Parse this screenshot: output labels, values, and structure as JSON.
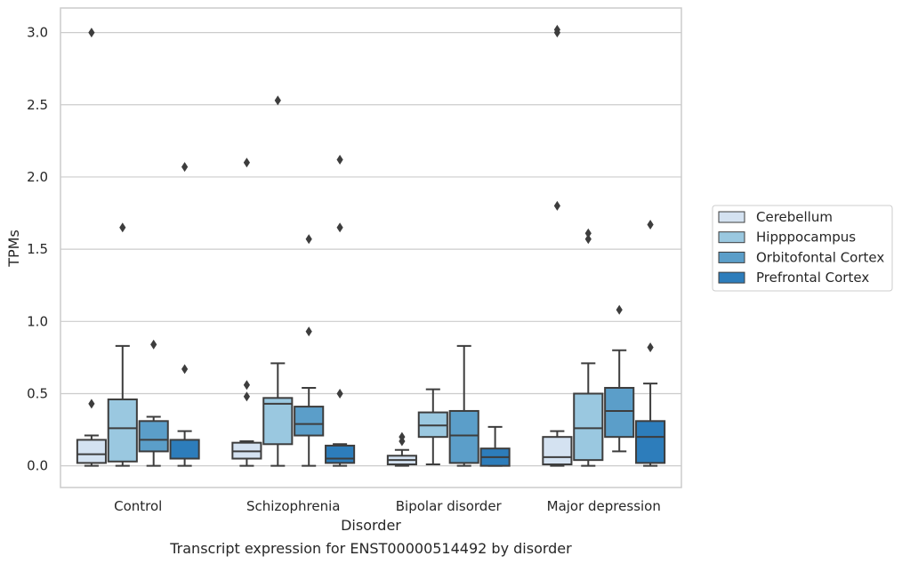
{
  "chart_data": {
    "type": "box",
    "title": "",
    "caption": "Transcript expression for ENST00000514492 by disorder",
    "xlabel": "Disorder",
    "ylabel": "TPMs",
    "ylim": [
      -0.15,
      3.17
    ],
    "yticks": [
      0.0,
      0.5,
      1.0,
      1.5,
      2.0,
      2.5,
      3.0
    ],
    "ytick_labels": [
      "0.0",
      "0.5",
      "1.0",
      "1.5",
      "2.0",
      "2.5",
      "3.0"
    ],
    "grid": "horizontal",
    "legend_position": "center-right outside",
    "categories": [
      "Control",
      "Schizophrenia",
      "Bipolar disorder",
      "Major depression"
    ],
    "series": [
      {
        "name": "Cerebellum",
        "color": "#d4e2f1",
        "boxes": [
          {
            "q1": 0.02,
            "median": 0.08,
            "q3": 0.18,
            "whisker_low": 0.0,
            "whisker_high": 0.21,
            "outliers": [
              0.43,
              3.0
            ]
          },
          {
            "q1": 0.05,
            "median": 0.1,
            "q3": 0.16,
            "whisker_low": 0.0,
            "whisker_high": 0.17,
            "outliers": [
              0.48,
              0.56,
              2.1
            ]
          },
          {
            "q1": 0.01,
            "median": 0.04,
            "q3": 0.07,
            "whisker_low": 0.0,
            "whisker_high": 0.11,
            "outliers": [
              0.17,
              0.2
            ]
          },
          {
            "q1": 0.01,
            "median": 0.06,
            "q3": 0.2,
            "whisker_low": 0.0,
            "whisker_high": 0.24,
            "outliers": [
              1.8,
              3.0,
              3.02
            ]
          }
        ]
      },
      {
        "name": "Hipppocampus",
        "color": "#9ac8e0",
        "boxes": [
          {
            "q1": 0.03,
            "median": 0.26,
            "q3": 0.46,
            "whisker_low": 0.0,
            "whisker_high": 0.83,
            "outliers": [
              1.65
            ]
          },
          {
            "q1": 0.15,
            "median": 0.43,
            "q3": 0.47,
            "whisker_low": 0.0,
            "whisker_high": 0.71,
            "outliers": [
              2.53
            ]
          },
          {
            "q1": 0.2,
            "median": 0.28,
            "q3": 0.37,
            "whisker_low": 0.01,
            "whisker_high": 0.53,
            "outliers": []
          },
          {
            "q1": 0.04,
            "median": 0.26,
            "q3": 0.5,
            "whisker_low": 0.0,
            "whisker_high": 0.71,
            "outliers": [
              1.57,
              1.61
            ]
          }
        ]
      },
      {
        "name": "Orbitofontal Cortex",
        "color": "#5b9ec9",
        "boxes": [
          {
            "q1": 0.1,
            "median": 0.18,
            "q3": 0.31,
            "whisker_low": 0.0,
            "whisker_high": 0.34,
            "outliers": [
              0.84
            ]
          },
          {
            "q1": 0.21,
            "median": 0.29,
            "q3": 0.41,
            "whisker_low": 0.0,
            "whisker_high": 0.54,
            "outliers": [
              0.93,
              1.57
            ]
          },
          {
            "q1": 0.02,
            "median": 0.21,
            "q3": 0.38,
            "whisker_low": 0.0,
            "whisker_high": 0.83,
            "outliers": []
          },
          {
            "q1": 0.2,
            "median": 0.38,
            "q3": 0.54,
            "whisker_low": 0.1,
            "whisker_high": 0.8,
            "outliers": [
              1.08
            ]
          }
        ]
      },
      {
        "name": "Prefrontal Cortex",
        "color": "#2d7dbb",
        "boxes": [
          {
            "q1": 0.05,
            "median": 0.05,
            "q3": 0.18,
            "whisker_low": 0.0,
            "whisker_high": 0.24,
            "outliers": [
              0.67,
              2.07
            ]
          },
          {
            "q1": 0.02,
            "median": 0.05,
            "q3": 0.14,
            "whisker_low": 0.0,
            "whisker_high": 0.15,
            "outliers": [
              0.5,
              1.65,
              2.12
            ]
          },
          {
            "q1": 0.0,
            "median": 0.06,
            "q3": 0.12,
            "whisker_low": 0.0,
            "whisker_high": 0.27,
            "outliers": []
          },
          {
            "q1": 0.02,
            "median": 0.2,
            "q3": 0.31,
            "whisker_low": 0.0,
            "whisker_high": 0.57,
            "outliers": [
              0.82,
              1.67
            ]
          }
        ]
      }
    ]
  }
}
